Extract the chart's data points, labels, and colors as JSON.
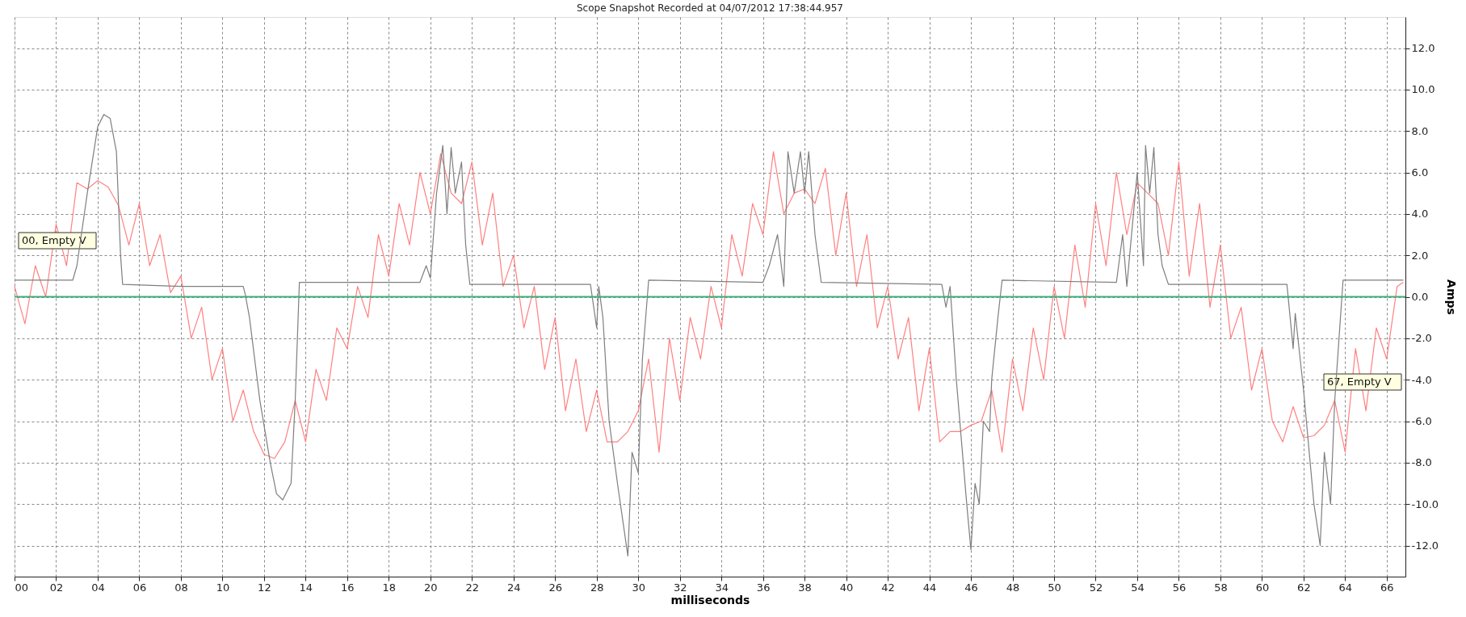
{
  "chart_data": {
    "type": "line",
    "title": "Scope Snapshot Recorded at 04/07/2012 17:38:44.957",
    "xlabel": "milliseconds",
    "ylabel": "Amps",
    "xlim": [
      0,
      66.9
    ],
    "ylim": [
      -13.5,
      13.5
    ],
    "xticks": [
      {
        "value": 0,
        "label": "00"
      },
      {
        "value": 2,
        "label": "02"
      },
      {
        "value": 4,
        "label": "04"
      },
      {
        "value": 6,
        "label": "06"
      },
      {
        "value": 8,
        "label": "08"
      },
      10,
      12,
      14,
      16,
      18,
      20,
      22,
      24,
      26,
      28,
      30,
      32,
      34,
      36,
      38,
      40,
      42,
      44,
      46,
      48,
      50,
      52,
      54,
      56,
      58,
      60,
      62,
      64,
      66
    ],
    "yticks": [
      {
        "value": -12,
        "label": "-12.0"
      },
      {
        "value": -10,
        "label": "-10.0"
      },
      {
        "value": -8,
        "label": "-8.0"
      },
      {
        "value": -6,
        "label": "-6.0"
      },
      {
        "value": -4,
        "label": "-4.0"
      },
      {
        "value": -2,
        "label": "-2.0"
      },
      {
        "value": 0,
        "label": "0.0"
      },
      {
        "value": 2,
        "label": "2.0"
      },
      {
        "value": 4,
        "label": "4.0"
      },
      {
        "value": 6,
        "label": "6.0"
      },
      {
        "value": 8,
        "label": "8.0"
      },
      {
        "value": 10,
        "label": "10.0"
      },
      {
        "value": 12,
        "label": "12.0"
      }
    ],
    "grid": true,
    "legend": false,
    "marker": "none",
    "line_style": "solid",
    "ref_lines": [
      {
        "axis": "y",
        "value": 0,
        "label": null,
        "color": "#3fae7c"
      }
    ],
    "annotations": [
      "00, Empty V",
      "67, Empty V"
    ],
    "series": [
      {
        "color": "#ff8080",
        "x": [
          0,
          0.5,
          1,
          1.5,
          2,
          2.5,
          3,
          3.5,
          4,
          4.5,
          5,
          5.5,
          6,
          6.5,
          7,
          7.5,
          8,
          8.5,
          9,
          9.5,
          10,
          10.5,
          11,
          11.5,
          12,
          12.5,
          13,
          13.5,
          14,
          14.5,
          15,
          15.5,
          16,
          16.5,
          17,
          17.5,
          18,
          18.5,
          19,
          19.5,
          20,
          20.5,
          21,
          21.5,
          22,
          22.5,
          23,
          23.5,
          24,
          24.5,
          25,
          25.5,
          26,
          26.5,
          27,
          27.5,
          28,
          28.5,
          29,
          29.5,
          30,
          30.5,
          31,
          31.5,
          32,
          32.5,
          33,
          33.5,
          34,
          34.5,
          35,
          35.5,
          36,
          36.5,
          37,
          37.5,
          38,
          38.5,
          39,
          39.5,
          40,
          40.5,
          41,
          41.5,
          42,
          42.5,
          43,
          43.5,
          44,
          44.5,
          45,
          45.5,
          46,
          46.5,
          47,
          47.5,
          48,
          48.5,
          49,
          49.5,
          50,
          50.5,
          51,
          51.5,
          52,
          52.5,
          53,
          53.5,
          54,
          54.5,
          55,
          55.5,
          56,
          56.5,
          57,
          57.5,
          58,
          58.5,
          59,
          59.5,
          60,
          60.5,
          61,
          61.5,
          62,
          62.5,
          63,
          63.5,
          64,
          64.5,
          65,
          65.5,
          66,
          66.5,
          66.8
        ],
        "values": [
          0.5,
          -1.3,
          1.5,
          0,
          3.5,
          1.5,
          5.5,
          5.2,
          5.6,
          5.3,
          4.4,
          2.5,
          4.5,
          1.5,
          3.0,
          0.2,
          1.0,
          -2.0,
          -0.5,
          -4.0,
          -2.5,
          -6.0,
          -4.5,
          -6.5,
          -7.6,
          -7.8,
          -7.0,
          -5.0,
          -7.0,
          -3.5,
          -5.0,
          -1.5,
          -2.5,
          0.5,
          -1.0,
          3.0,
          1.0,
          4.5,
          2.5,
          6.0,
          4.0,
          6.9,
          5.0,
          4.5,
          6.5,
          2.5,
          5.0,
          0.5,
          2.0,
          -1.5,
          0.5,
          -3.5,
          -1.0,
          -5.5,
          -3.0,
          -6.5,
          -4.5,
          -7.0,
          -7.0,
          -6.5,
          -5.5,
          -3.0,
          -7.5,
          -2.0,
          -5.0,
          -1.0,
          -3.0,
          0.5,
          -1.5,
          3.0,
          1.0,
          4.5,
          3.0,
          7.0,
          4.0,
          5.0,
          5.2,
          4.5,
          6.2,
          2.0,
          5.0,
          0.5,
          3.0,
          -1.5,
          0.5,
          -3.0,
          -1.0,
          -5.5,
          -2.5,
          -7.0,
          -6.5,
          -6.5,
          -6.2,
          -6.0,
          -4.5,
          -7.5,
          -3.0,
          -5.5,
          -1.5,
          -4.0,
          0.5,
          -2.0,
          2.5,
          -0.5,
          4.5,
          1.5,
          6.0,
          3.0,
          5.5,
          5.0,
          4.5,
          2.0,
          6.5,
          1.0,
          4.5,
          -0.5,
          2.5,
          -2.0,
          -0.5,
          -4.5,
          -2.5,
          -6.0,
          -7.0,
          -5.3,
          -6.8,
          -6.7,
          -6.2,
          -5.0,
          -7.5,
          -2.5,
          -5.5,
          -1.5,
          -3.0,
          0.5,
          0.7
        ]
      },
      {
        "color": "#7f7f7f",
        "x": [
          0,
          2.8,
          3.0,
          3.5,
          4.0,
          4.3,
          4.6,
          4.9,
          5.1,
          5.2,
          8,
          11,
          11.1,
          11.3,
          11.8,
          12.3,
          12.6,
          12.9,
          13.3,
          13.5,
          13.7,
          19.5,
          19.8,
          20.0,
          20.3,
          20.6,
          20.8,
          21.0,
          21.2,
          21.5,
          21.7,
          21.9,
          27.7,
          28.0,
          28.1,
          28.3,
          28.6,
          29.0,
          29.5,
          29.7,
          30.0,
          30.2,
          30.5,
          36.0,
          36.3,
          36.7,
          37.0,
          37.2,
          37.5,
          37.8,
          38.0,
          38.2,
          38.5,
          38.8,
          44.6,
          44.8,
          45.0,
          45.3,
          45.8,
          46.0,
          46.2,
          46.4,
          46.6,
          46.9,
          47.0,
          47.3,
          47.5,
          53.0,
          53.3,
          53.5,
          54.0,
          54.3,
          54.4,
          54.6,
          54.8,
          55.0,
          55.2,
          55.5,
          61.2,
          61.5,
          61.6,
          62.0,
          62.5,
          62.8,
          63.0,
          63.3,
          63.5,
          63.9,
          66.8
        ],
        "values": [
          0.8,
          0.8,
          1.5,
          5,
          8.2,
          8.8,
          8.6,
          7,
          2,
          0.6,
          0.5,
          0.5,
          0.1,
          -1,
          -5,
          -8,
          -9.5,
          -9.8,
          -9,
          -5,
          0.7,
          0.7,
          1.5,
          0.9,
          5,
          7.3,
          4,
          7.2,
          5,
          6.5,
          2.5,
          0.6,
          0.6,
          -1.5,
          0.5,
          -1,
          -6,
          -9,
          -12.5,
          -7.5,
          -8.5,
          -3,
          0.8,
          0.7,
          1.5,
          3,
          0.5,
          7,
          5,
          7.0,
          5,
          7.0,
          3,
          0.7,
          0.6,
          -0.5,
          0.5,
          -4,
          -10,
          -12.2,
          -9,
          -10,
          -6,
          -6.5,
          -4,
          -1,
          0.8,
          0.7,
          3,
          0.5,
          6,
          1.5,
          7.3,
          5,
          7.2,
          3,
          1.5,
          0.6,
          0.6,
          -2.5,
          -0.8,
          -4.5,
          -10,
          -12,
          -7.5,
          -10,
          -5,
          0.8,
          0.8
        ]
      }
    ]
  }
}
